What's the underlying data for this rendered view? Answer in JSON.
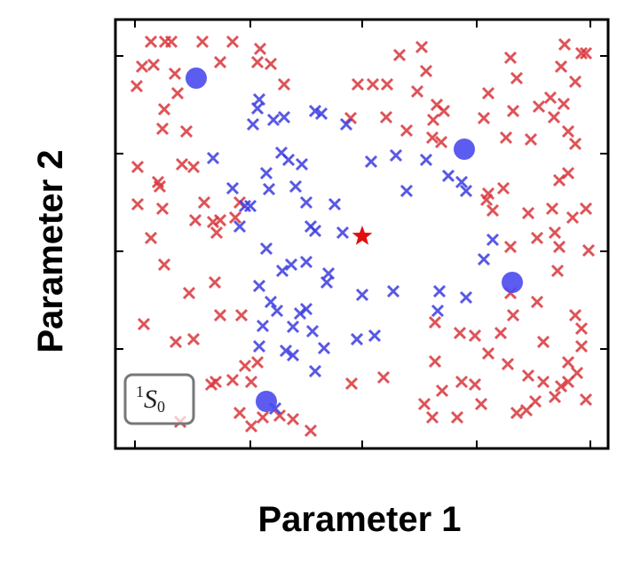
{
  "chart_data": {
    "type": "scatter",
    "x_label": "Parameter 1",
    "y_label": "Parameter 2",
    "annotation": {
      "sup": "1",
      "text": "S",
      "sub": "0"
    },
    "xlim": [
      0,
      555
    ],
    "ylim": [
      0,
      483
    ],
    "xticks": [
      22,
      152,
      278,
      407,
      535
    ],
    "yticks": [
      112,
      222,
      332,
      442
    ],
    "series": [
      {
        "marker": "x",
        "color": "#d8353a",
        "x": [
          40,
          56,
          63,
          98,
          132,
          30,
          43,
          24,
          67,
          70,
          55,
          53,
          80,
          75,
          88,
          25,
          48,
          50,
          25,
          53,
          40,
          55,
          100,
          110,
          118,
          114,
          90,
          140,
          135,
          83,
          112,
          88,
          118,
          142,
          32,
          113,
          132,
          108,
          146,
          153,
          160,
          73,
          153,
          166,
          185,
          200,
          68,
          118,
          160,
          175,
          190,
          163,
          265,
          305,
          328,
          273,
          290,
          306,
          320,
          345,
          350,
          340,
          358,
          362,
          370,
          357,
          367,
          420,
          415,
          445,
          452,
          448,
          477,
          490,
          506,
          525,
          530,
          502,
          518,
          494,
          505,
          510,
          518,
          510,
          500,
          440,
          468,
          492,
          515,
          530,
          495,
          500,
          533,
          465,
          498,
          475,
          445,
          418,
          425,
          437,
          420,
          445,
          448,
          475,
          518,
          525,
          525,
          482,
          434,
          405,
          420,
          388,
          360,
          360,
          390,
          368,
          348,
          357,
          405,
          412,
          385,
          442,
          465,
          482,
          510,
          520,
          510,
          502,
          473,
          452,
          463,
          495,
          530,
          266,
          302,
          220,
          140
        ],
        "values": [
          458,
          458,
          458,
          458,
          458,
          430,
          432,
          408,
          422,
          400,
          382,
          360,
          357,
          320,
          317,
          317,
          300,
          295,
          275,
          270,
          237,
          207,
          277,
          255,
          257,
          243,
          257,
          277,
          260,
          175,
          187,
          123,
          150,
          150,
          140,
          75,
          77,
          72,
          93,
          75,
          97,
          30,
          25,
          35,
          37,
          33,
          120,
          435,
          435,
          433,
          410,
          450,
          372,
          373,
          358,
          410,
          410,
          410,
          443,
          452,
          425,
          402,
          370,
          387,
          380,
          350,
          345,
          400,
          372,
          440,
          417,
          380,
          385,
          395,
          455,
          445,
          445,
          430,
          413,
          373,
          388,
          357,
          343,
          310,
          302,
          350,
          348,
          270,
          260,
          270,
          243,
          227,
          223,
          265,
          200,
          237,
          227,
          280,
          268,
          293,
          287,
          175,
          150,
          165,
          150,
          135,
          115,
          120,
          130,
          127,
          107,
          130,
          142,
          98,
          75,
          65,
          50,
          35,
          72,
          50,
          35,
          95,
          82,
          75,
          75,
          85,
          97,
          70,
          53,
          40,
          43,
          58,
          55,
          73,
          80,
          20,
          40
        ]
      },
      {
        "marker": "x",
        "color": "#3b3be0",
        "x": [
          162,
          160,
          190,
          178,
          155,
          225,
          232,
          260,
          110,
          132,
          146,
          152,
          140,
          170,
          173,
          187,
          195,
          210,
          203,
          215,
          220,
          225,
          247,
          256,
          288,
          316,
          328,
          350,
          375,
          390,
          395,
          425,
          415,
          170,
          162,
          188,
          198,
          215,
          240,
          238,
          175,
          182,
          208,
          215,
          200,
          222,
          166,
          162,
          192,
          200,
          225,
          235,
          272,
          292,
          278,
          313,
          365,
          395,
          363,
          180
        ],
        "values": [
          393,
          383,
          373,
          370,
          365,
          380,
          377,
          365,
          327,
          293,
          273,
          273,
          250,
          310,
          292,
          333,
          325,
          320,
          295,
          277,
          250,
          245,
          275,
          243,
          323,
          330,
          290,
          325,
          307,
          300,
          290,
          235,
          213,
          225,
          183,
          200,
          207,
          210,
          197,
          187,
          165,
          155,
          152,
          157,
          137,
          132,
          138,
          115,
          110,
          105,
          87,
          113,
          123,
          127,
          173,
          177,
          177,
          170,
          155,
          45
        ]
      },
      {
        "marker": "circle",
        "color": "#4a4af0",
        "x": [
          91,
          393,
          447,
          170
        ],
        "values": [
          417,
          337,
          187,
          53
        ]
      },
      {
        "marker": "star",
        "color": "#e01010",
        "x": [
          278
        ],
        "values": [
          239
        ]
      }
    ]
  }
}
